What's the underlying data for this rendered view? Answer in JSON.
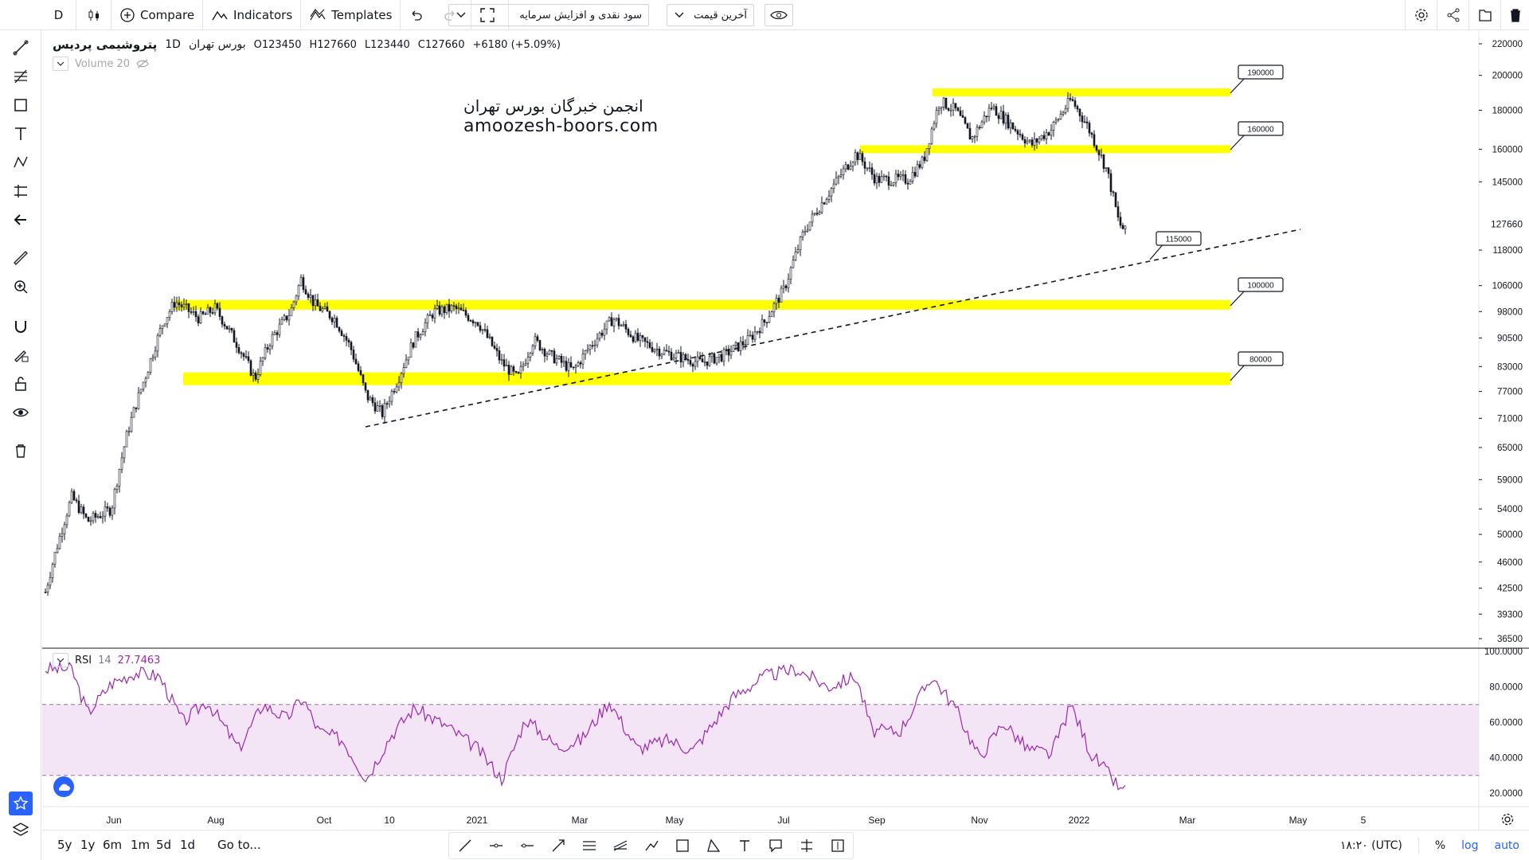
{
  "toolbar": {
    "interval": "D",
    "compare_label": "Compare",
    "indicators_label": "Indicators",
    "templates_label": "Templates",
    "select1_value": "سود نقدی و افزایش سرمایه",
    "select2_value": "آخرین قیمت"
  },
  "legend": {
    "symbol": "پتروشیمی پردیس",
    "interval": "1D",
    "exchange": "بورس تهران",
    "open": "O123450",
    "high": "H127660",
    "low": "L123440",
    "close": "C127660",
    "change": "+6180 (+5.09%)",
    "volume_label": "Volume 20"
  },
  "watermark": {
    "line1": "انجمن خبرگان بورس تهران",
    "line2": "amoozesh-boors.com"
  },
  "annotations": [
    "190000",
    "160000",
    "115000",
    "100000",
    "80000"
  ],
  "price_axis": {
    "labels": [
      "220000",
      "200000",
      "180000",
      "160000",
      "145000",
      "118000",
      "106000",
      "98000",
      "90500",
      "83000",
      "77000",
      "71000",
      "65000",
      "59000",
      "54000",
      "50000",
      "46000",
      "42500",
      "39300",
      "36500"
    ],
    "last_price": "127660"
  },
  "rsi": {
    "label": "RSI",
    "period": "14",
    "value": "27.7463",
    "axis_labels": [
      "100.0000",
      "80.0000",
      "60.0000",
      "40.0000",
      "20.0000"
    ]
  },
  "time_axis": [
    "Jun",
    "Aug",
    "Oct",
    "10",
    "2021",
    "Mar",
    "May",
    "Jul",
    "Sep",
    "Nov",
    "2022",
    "Mar",
    "May",
    "5"
  ],
  "bottom": {
    "ranges": [
      "5y",
      "1y",
      "6m",
      "1m",
      "5d",
      "1d"
    ],
    "goto": "Go to...",
    "time": "۱۸:۲۰ (UTC)",
    "percent": "%",
    "log": "log",
    "auto": "auto"
  },
  "colors": {
    "zone": "#ffff00",
    "rsi_line": "#9c27b0",
    "rsi_band": "#f3e5f5",
    "accent": "#2962ff"
  },
  "chart_data": {
    "type": "candlestick",
    "price_scale": "log",
    "last_close": 127660,
    "support_resistance_zones": [
      190000,
      160000,
      100000,
      80000
    ],
    "trendline_target": 115000,
    "rsi_bands": [
      30,
      70
    ],
    "rsi_last": 27.7463
  }
}
